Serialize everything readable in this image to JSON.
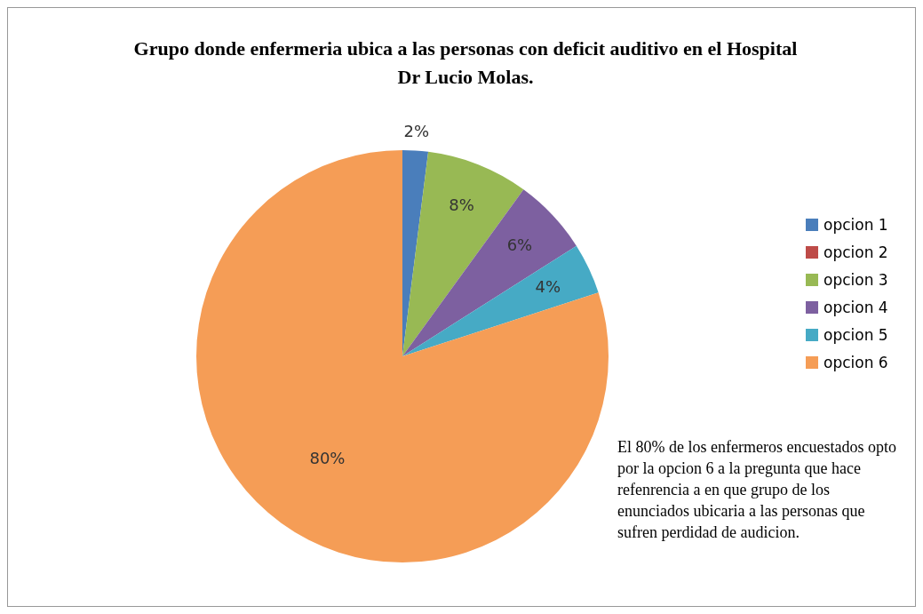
{
  "chart_data": {
    "type": "pie",
    "title": "Grupo donde enfermeria ubica a las personas con deficit auditivo en el Hospital Dr Lucio Molas.",
    "categories": [
      "opcion 1",
      "opcion 2",
      "opcion 3",
      "opcion 4",
      "opcion 5",
      "opcion 6"
    ],
    "values": [
      2,
      0,
      8,
      6,
      4,
      80
    ],
    "colors": [
      "#4a7ebb",
      "#be4b48",
      "#98b954",
      "#7d60a0",
      "#46aac5",
      "#f59d56"
    ],
    "value_labels": [
      "2%",
      null,
      "8%",
      "6%",
      "4%",
      "80%"
    ],
    "legend": "right",
    "annotations": [
      "El 80% de los enfermeros encuestados opto por la opcion 6 a la pregunta que hace refenrencia a en que grupo de los enunciados ubicaria a las personas que sufren perdidad de audicion."
    ]
  }
}
